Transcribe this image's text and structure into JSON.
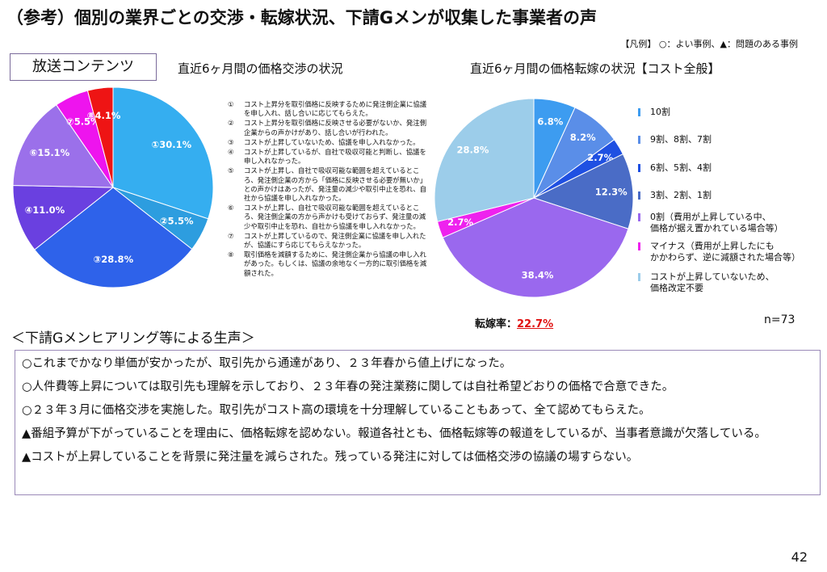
{
  "title": "（参考）個別の業界ごとの交渉・転嫁状況、下請Gメンが収集した事業者の声",
  "legend_note": "【凡例】 ○：よい事例、▲：問題のある事例",
  "genre": "放送コンテンツ",
  "chart_data": [
    {
      "type": "pie",
      "title": "直近6ヶ月間の価格交渉の状況",
      "values": [
        30.1,
        5.5,
        28.8,
        11.0,
        15.1,
        5.5,
        4.1
      ],
      "value_labels": [
        "①30.1%",
        "②5.5%",
        "③28.8%",
        "④11.0%",
        "⑥15.1%",
        "⑦5.5%",
        "⑧4.1%"
      ],
      "colors": [
        "#35aef0",
        "#2d9ddf",
        "#2e62ea",
        "#6a40e0",
        "#9b70ea",
        "#ee14ee",
        "#ee1414"
      ],
      "notes": [
        {
          "marker": "①",
          "text": "コスト上昇分を取引価格に反映するために発注側企業に協議を申し入れ、話し合いに応じてもらえた。"
        },
        {
          "marker": "②",
          "text": "コスト上昇分を取引価格に反映させる必要がないか、発注側企業からの声かけがあり、話し合いが行われた。"
        },
        {
          "marker": "③",
          "text": "コストが上昇していないため、協議を申し入れなかった。"
        },
        {
          "marker": "④",
          "text": "コストが上昇しているが、自社で吸収可能と判断し、協議を申し入れなかった。"
        },
        {
          "marker": "⑤",
          "text": "コストが上昇し、自社で吸収可能な範囲を超えているところ、発注側企業の方から「価格に反映させる必要が無いか」との声かけはあったが、発注量の減少や取引中止を恐れ、自社から協議を申し入れなかった。"
        },
        {
          "marker": "⑥",
          "text": "コストが上昇し、自社で吸収可能な範囲を超えているところ、発注側企業の方から声かけも受けておらず、発注量の減少や取引中止を恐れ、自社から協議を申し入れなかった。"
        },
        {
          "marker": "⑦",
          "text": "コストが上昇しているので、発注側企業に協議を申し入れたが、協議にすら応じてもらえなかった。"
        },
        {
          "marker": "⑧",
          "text": "取引価格を減額するために、発注側企業から協議の申し入れがあった。もしくは、協議の余地なく一方的に取引価格を減額された。"
        }
      ]
    },
    {
      "type": "pie",
      "title": "直近6ヶ月間の価格転嫁の状況【コスト全般】",
      "categories": [
        "10割",
        "9割、8割、7割",
        "6割、5割、4割",
        "3割、2割、1割",
        "0割（費用が上昇している中、\n価格が据え置かれている場合等）",
        "マイナス（費用が上昇したにも\nかかわらず、逆に減額された場合等）",
        "コストが上昇していないため、\n価格改定不要"
      ],
      "values": [
        6.8,
        8.2,
        2.7,
        12.3,
        38.4,
        2.7,
        28.8
      ],
      "value_labels": [
        "6.8%",
        "8.2%",
        "2.7%",
        "12.3%",
        "38.4%",
        "2.7%",
        "28.8%"
      ],
      "colors": [
        "#3d9cf0",
        "#5a8ee8",
        "#1f50e2",
        "#4a6cc6",
        "#9a68ee",
        "#ee22ee",
        "#9ccdea"
      ],
      "rate_label": "転嫁率：",
      "rate_value": "22.7%",
      "sample_size": "n=73"
    }
  ],
  "voices_heading": "＜下請Gメンヒアリング等による生声＞",
  "voices": [
    "○これまでかなり単価が安かったが、取引先から通達があり、２３年春から値上げになった。",
    "○人件費等上昇については取引先も理解を示しており、２３年春の発注業務に関しては自社希望どおりの価格で合意できた。",
    "○２３年３月に価格交渉を実施した。取引先がコスト高の環境を十分理解していることもあって、全て認めてもらえた。",
    "▲番組予算が下がっていることを理由に、価格転嫁を認めない。報道各社とも、価格転嫁等の報道をしているが、当事者意識が欠落している。",
    "▲コストが上昇していることを背景に発注量を減らされた。残っている発注に対しては価格交渉の協議の場すらない。"
  ],
  "page_number": "42"
}
